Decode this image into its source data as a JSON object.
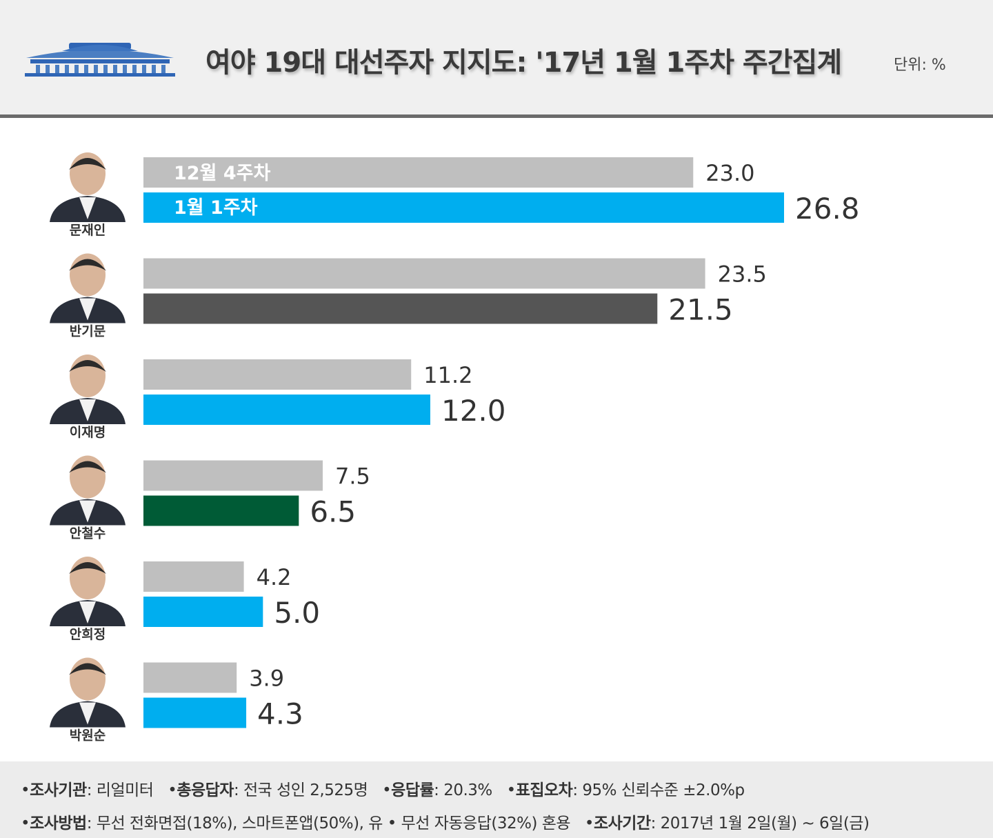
{
  "header": {
    "title": "여야 19대 대선주자 지지도: '17년 1월 1주차 주간집계",
    "unit": "단위: %"
  },
  "colors": {
    "previous_week": "#bfbfbf",
    "democratic": "#00aeef",
    "independent": "#555555",
    "peoples_party": "#005b36",
    "header_bg": "#f0f0f0",
    "footer_bg": "#ececec"
  },
  "chart_data": {
    "type": "bar",
    "orientation": "horizontal",
    "title": "여야 19대 대선주자 지지도: '17년 1월 1주차 주간집계",
    "unit": "%",
    "categories": [
      "문재인",
      "반기문",
      "이재명",
      "안철수",
      "안희정",
      "박원순"
    ],
    "series": [
      {
        "name": "12월 4주차",
        "values": [
          23.0,
          23.5,
          11.2,
          7.5,
          4.2,
          3.9
        ]
      },
      {
        "name": "1월 1주차",
        "values": [
          26.8,
          21.5,
          12.0,
          6.5,
          5.0,
          4.3
        ]
      }
    ],
    "current_bar_colors": [
      "#00aeef",
      "#555555",
      "#00aeef",
      "#005b36",
      "#00aeef",
      "#00aeef"
    ],
    "xlim": [
      0,
      30
    ],
    "grid": false,
    "legend": "inside-first-bars"
  },
  "footer": {
    "line1": [
      {
        "key": "조사기관",
        "value": ": 리얼미터"
      },
      {
        "key": "총응답자",
        "value": ": 전국 성인 2,525명"
      },
      {
        "key": "응답률",
        "value": ": 20.3%"
      },
      {
        "key": "표집오차",
        "value": ": 95% 신뢰수준 ±2.0%p"
      }
    ],
    "line2": [
      {
        "key": "조사방법",
        "value": ": 무선 전화면접(18%), 스마트폰앱(50%), 유 • 무선 자동응답(32%) 혼용"
      },
      {
        "key": "조사기간",
        "value": ": 2017년 1월 2일(월) ~ 6일(금)"
      }
    ]
  }
}
